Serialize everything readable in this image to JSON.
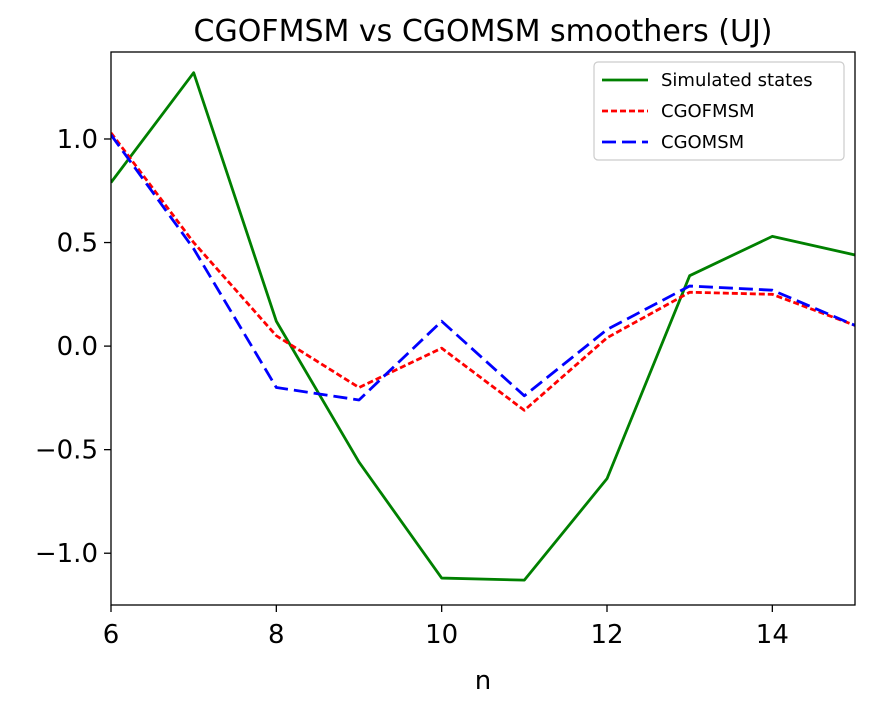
{
  "chart_data": {
    "type": "line",
    "title": "CGOFMSM vs CGOMSM smoothers (UJ)",
    "xlabel": "n",
    "ylabel": "",
    "xlim": [
      6,
      15
    ],
    "ylim": [
      -1.25,
      1.42
    ],
    "xticks": [
      6,
      8,
      10,
      12,
      14
    ],
    "xtick_labels": [
      "6",
      "8",
      "10",
      "12",
      "14"
    ],
    "yticks": [
      1.0,
      0.5,
      0.0,
      -0.5,
      -1.0
    ],
    "ytick_labels": [
      "1.0",
      "0.5",
      "0.0",
      "−0.5",
      "−1.0"
    ],
    "grid": false,
    "legend_position": "top-right",
    "x": [
      6,
      7,
      8,
      9,
      10,
      11,
      12,
      13,
      14,
      15
    ],
    "series": [
      {
        "name": "Simulated states",
        "color": "#008000",
        "style": "solid",
        "values": [
          0.79,
          1.32,
          0.12,
          -0.56,
          -1.12,
          -1.13,
          -0.64,
          0.34,
          0.53,
          0.44
        ]
      },
      {
        "name": "CGOFMSM",
        "color": "#ff0000",
        "style": "dotted",
        "values": [
          1.03,
          0.5,
          0.05,
          -0.2,
          -0.01,
          -0.31,
          0.04,
          0.26,
          0.25,
          0.1
        ]
      },
      {
        "name": "CGOMSM",
        "color": "#0000ff",
        "style": "dashed",
        "values": [
          1.02,
          0.47,
          -0.2,
          -0.26,
          0.12,
          -0.24,
          0.08,
          0.29,
          0.27,
          0.1
        ]
      }
    ]
  }
}
